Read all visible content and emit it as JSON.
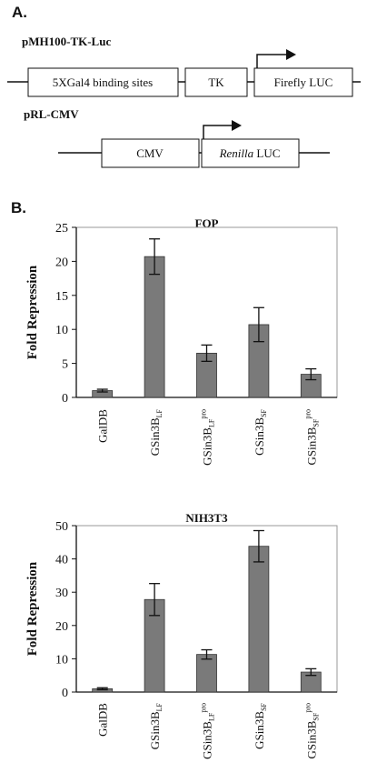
{
  "panelA": {
    "label": "A.",
    "construct1": {
      "name": "pMH100-TK-Luc",
      "boxes": [
        "5XGal4 binding sites",
        "TK",
        "Firefly LUC"
      ]
    },
    "construct2": {
      "name": "pRL-CMV",
      "boxes": [
        "CMV",
        "Renilla",
        "LUC"
      ]
    }
  },
  "panelB": {
    "label": "B."
  },
  "ylabel": "Fold Repression",
  "categories": [
    {
      "main": "GalDB",
      "sub": "",
      "sup": ""
    },
    {
      "main": "GSin3B",
      "sub": "LF",
      "sup": ""
    },
    {
      "main": "GSin3B",
      "sub": "LF",
      "sup": "pro"
    },
    {
      "main": "GSin3B",
      "sub": "SF",
      "sup": ""
    },
    {
      "main": "GSin3B",
      "sub": "SF",
      "sup": "pro"
    }
  ],
  "chart_data": [
    {
      "type": "bar",
      "title": "FOP",
      "ylabel": "Fold Repression",
      "categories": [
        "GalDB",
        "GSin3B LF",
        "GSin3B LF pro",
        "GSin3B SF",
        "GSin3B SF pro"
      ],
      "values": [
        1,
        20.7,
        6.5,
        10.7,
        3.4
      ],
      "errors": [
        0.2,
        2.6,
        1.2,
        2.5,
        0.8
      ],
      "ylim": [
        0,
        25
      ],
      "yticks": [
        0,
        5,
        10,
        15,
        20,
        25
      ],
      "grid": false,
      "bar_color": "#7a7a7a",
      "plot_bg": "#ffffff"
    },
    {
      "type": "bar",
      "title": "NIH3T3",
      "ylabel": "Fold Repression",
      "categories": [
        "GalDB",
        "GSin3B LF",
        "GSin3B LF pro",
        "GSin3B SF",
        "GSin3B SF pro"
      ],
      "values": [
        1,
        27.8,
        11.3,
        43.8,
        6
      ],
      "errors": [
        0.3,
        4.8,
        1.4,
        4.7,
        1
      ],
      "ylim": [
        0,
        50
      ],
      "yticks": [
        0,
        10,
        20,
        30,
        40,
        50
      ],
      "grid": false,
      "bar_color": "#7a7a7a",
      "plot_bg": "#ffffff"
    }
  ]
}
